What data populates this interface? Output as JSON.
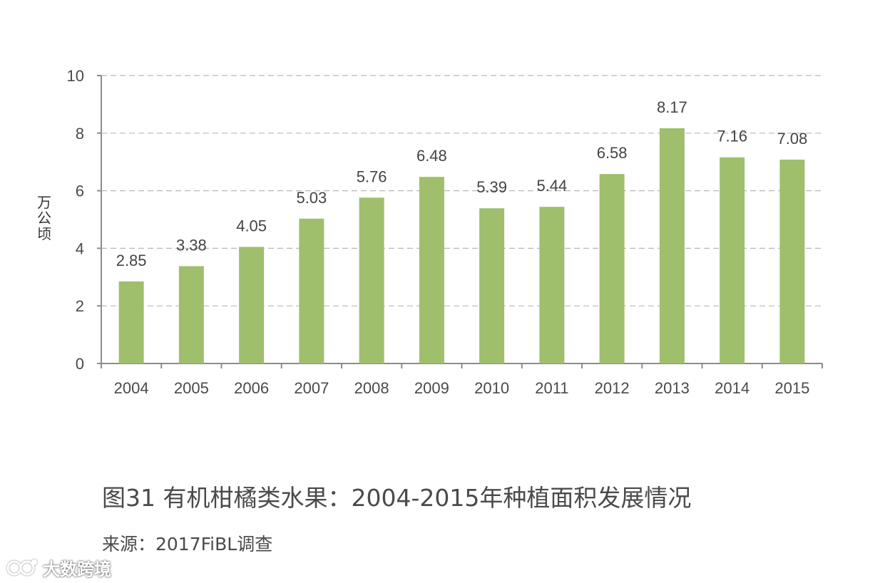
{
  "chart_data": {
    "type": "bar",
    "categories": [
      "2004",
      "2005",
      "2006",
      "2007",
      "2008",
      "2009",
      "2010",
      "2011",
      "2012",
      "2013",
      "2014",
      "2015"
    ],
    "values": [
      2.85,
      3.38,
      4.05,
      5.03,
      5.76,
      6.48,
      5.39,
      5.44,
      6.58,
      8.17,
      7.16,
      7.08
    ],
    "data_labels": [
      "2.85",
      "3.38",
      "4.05",
      "5.03",
      "5.76",
      "6.48",
      "5.39",
      "5.44",
      "6.58",
      "8.17",
      "7.16",
      "7.08"
    ],
    "ylabel": "万公顷",
    "xlabel": "",
    "ylim": [
      0,
      10
    ],
    "yticks": [
      "0",
      "2",
      "4",
      "6",
      "8",
      "10"
    ],
    "grid": true,
    "bar_color": "#9fbf6c",
    "grid_color": "#b8b8b8",
    "axis_color": "#8c8c8c"
  },
  "figure": {
    "title": "图31 有机柑橘类水果：2004-2015年种植面积发展情况",
    "source": "来源：2017FiBL调查"
  },
  "watermark": {
    "text": "大数跨境",
    "icon": "logo-icon"
  }
}
